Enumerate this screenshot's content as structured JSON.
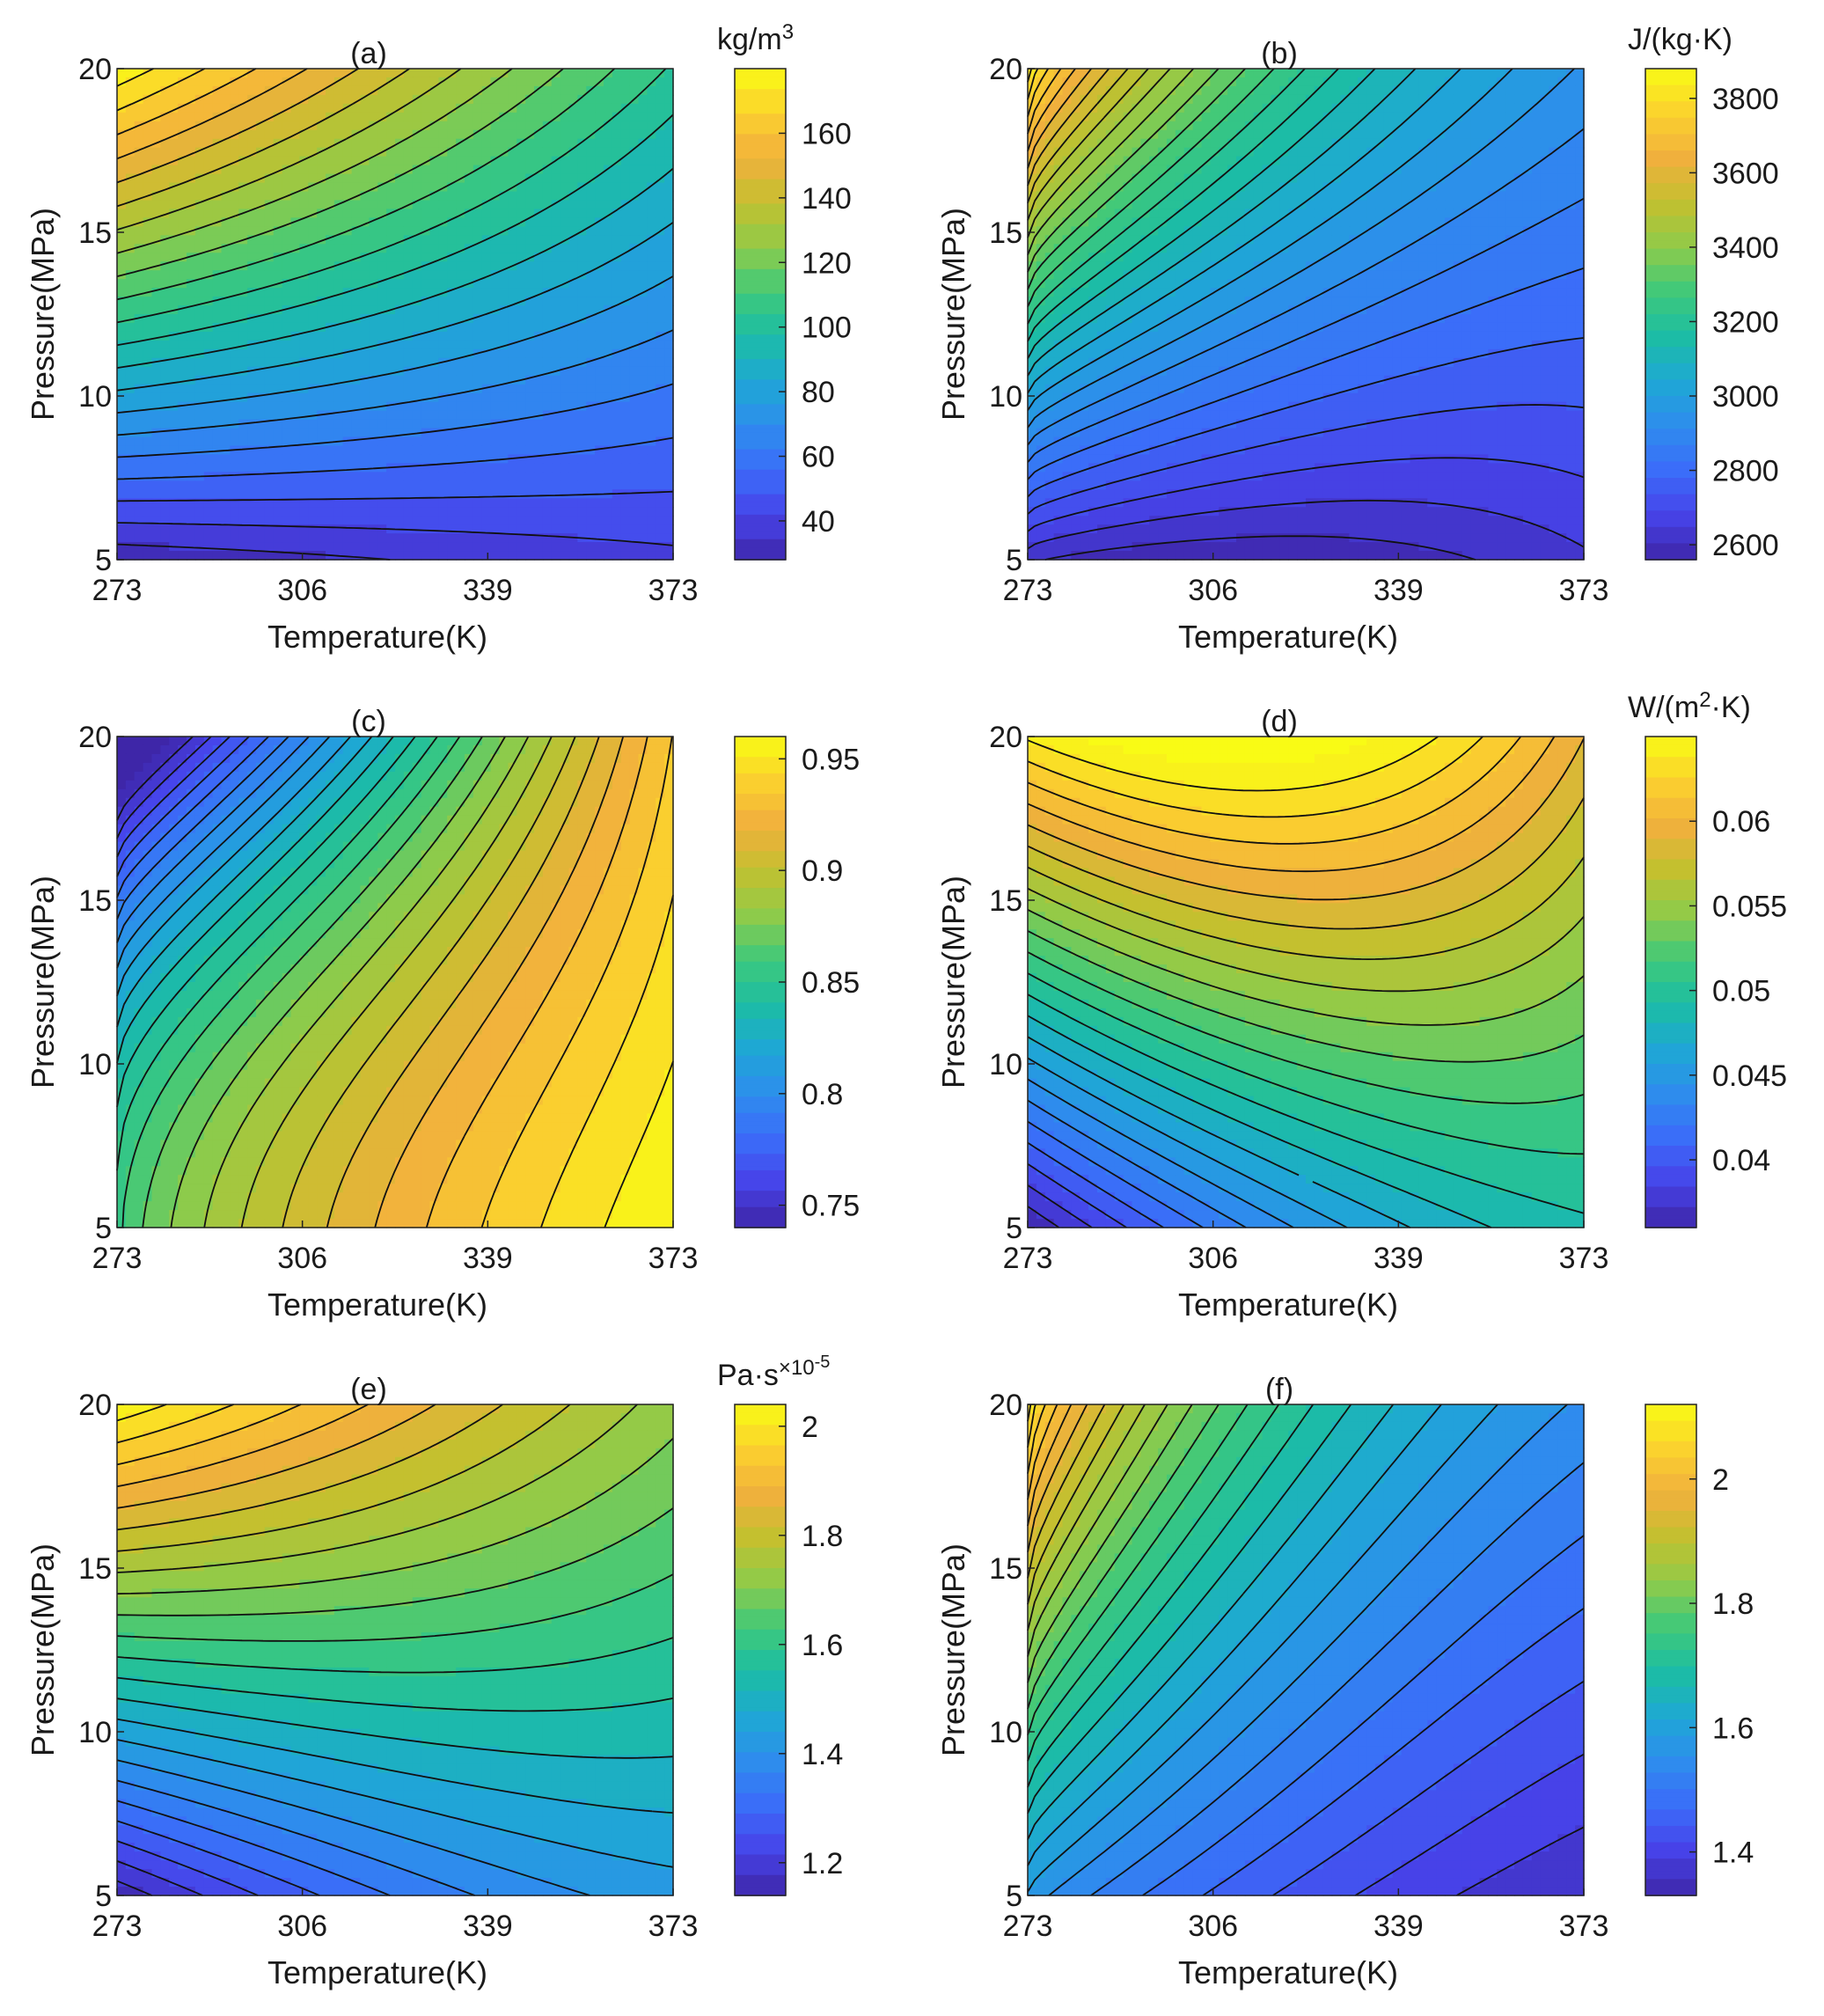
{
  "figure": {
    "colormap": [
      "#3e26a8",
      "#4743e9",
      "#3b6cf9",
      "#2e8ded",
      "#1ea8d4",
      "#1cbda4",
      "#3fc97a",
      "#8fcb4a",
      "#c3c02f",
      "#f1b03d",
      "#fbd12e",
      "#f9fb15"
    ],
    "contour_color": "#111111"
  },
  "chart_data": [
    {
      "id": "a",
      "type": "heatmap",
      "title": "(a)",
      "xlabel": "Temperature(K)",
      "ylabel": "Pressure(MPa)",
      "xlim": [
        273,
        373
      ],
      "ylim": [
        5,
        20
      ],
      "xticks": [
        "273",
        "306",
        "339",
        "373"
      ],
      "yticks": [
        "5",
        "10",
        "15",
        "20"
      ],
      "colorbar": {
        "label": "kg/m",
        "label_sup": "3",
        "label_tail": "",
        "range": [
          28,
          180
        ],
        "ticks": [
          "40",
          "60",
          "80",
          "100",
          "120",
          "140",
          "160"
        ],
        "tick_values": [
          40,
          60,
          80,
          100,
          120,
          140,
          160
        ]
      },
      "corners": {
        "t273_p5": 30,
        "t373_p5": 40,
        "t273_p20": 178,
        "t373_p20": 103
      },
      "n_levels": 22
    },
    {
      "id": "b",
      "type": "heatmap",
      "title": "(b)",
      "xlabel": "Temperature(K)",
      "ylabel": "Pressure(MPa)",
      "xlim": [
        273,
        373
      ],
      "ylim": [
        5,
        20
      ],
      "xticks": [
        "273",
        "306",
        "339",
        "373"
      ],
      "yticks": [
        "5",
        "10",
        "15",
        "20"
      ],
      "colorbar": {
        "label": "J/(kg·K)",
        "label_sup": "",
        "label_tail": "",
        "range": [
          2560,
          3880
        ],
        "ticks": [
          "2600",
          "2800",
          "3000",
          "3200",
          "3400",
          "3600",
          "3800"
        ],
        "tick_values": [
          2600,
          2800,
          3000,
          3200,
          3400,
          3600,
          3800
        ]
      },
      "corners": {
        "t273_p5": 2620,
        "t373_p5": 2640,
        "t273_p20": 3870,
        "t373_p20": 2950
      },
      "n_levels": 30
    },
    {
      "id": "c",
      "type": "heatmap",
      "title": "(c)",
      "xlabel": "Temperature(K)",
      "ylabel": "Pressure(MPa)",
      "xlim": [
        273,
        373
      ],
      "ylim": [
        5,
        20
      ],
      "xticks": [
        "273",
        "306",
        "339",
        "373"
      ],
      "yticks": [
        "5",
        "10",
        "15",
        "20"
      ],
      "colorbar": {
        "label": "",
        "label_sup": "",
        "label_tail": "",
        "range": [
          0.74,
          0.96
        ],
        "ticks": [
          "0.75",
          "0.8",
          "0.85",
          "0.9",
          "0.95"
        ],
        "tick_values": [
          0.75,
          0.8,
          0.85,
          0.9,
          0.95
        ]
      },
      "corners": {
        "t273_p5": 0.87,
        "t373_p5": 0.96,
        "t273_p20": 0.76,
        "t373_p20": 0.935
      },
      "n_levels": 26
    },
    {
      "id": "d",
      "type": "heatmap",
      "title": "(d)",
      "xlabel": "Temperature(K)",
      "ylabel": "Pressure(MPa)",
      "xlim": [
        273,
        373
      ],
      "ylim": [
        5,
        20
      ],
      "xticks": [
        "273",
        "306",
        "339",
        "373"
      ],
      "yticks": [
        "5",
        "10",
        "15",
        "20"
      ],
      "colorbar": {
        "label": "W/(m",
        "label_sup": "2",
        "label_tail": "·K)",
        "range": [
          0.036,
          0.065
        ],
        "ticks": [
          "0.04",
          "0.045",
          "0.05",
          "0.055",
          "0.06"
        ],
        "tick_values": [
          0.04,
          0.045,
          0.05,
          0.055,
          0.06
        ]
      },
      "corners": {
        "t273_p5": 0.036,
        "t373_p5": 0.049,
        "t273_p20": 0.064,
        "t373_p20": 0.059
      },
      "n_levels": 24
    },
    {
      "id": "e",
      "type": "heatmap",
      "title": "(e)",
      "xlabel": "Temperature(K)",
      "ylabel": "Pressure(MPa)",
      "xlim": [
        273,
        373
      ],
      "ylim": [
        5,
        20
      ],
      "xticks": [
        "273",
        "306",
        "339",
        "373"
      ],
      "yticks": [
        "5",
        "10",
        "15",
        "20"
      ],
      "colorbar": {
        "label": "Pa·s",
        "label_sup": "×10",
        "label_exp": "-5",
        "label_tail": "",
        "range": [
          1.14,
          2.04
        ],
        "ticks": [
          "1.2",
          "1.4",
          "1.6",
          "1.8",
          "2"
        ],
        "tick_values": [
          1.2,
          1.4,
          1.6,
          1.8,
          2.0
        ]
      },
      "corners": {
        "t273_p5": 1.15,
        "t373_p5": 1.42,
        "t273_p20": 2.03,
        "t373_p20": 1.72
      },
      "n_levels": 24
    },
    {
      "id": "f",
      "type": "heatmap",
      "title": "(f)",
      "xlabel": "Temperature(K)",
      "ylabel": "Pressure(MPa)",
      "xlim": [
        273,
        373
      ],
      "ylim": [
        5,
        20
      ],
      "xticks": [
        "273",
        "306",
        "339",
        "373"
      ],
      "yticks": [
        "5",
        "10",
        "15",
        "20"
      ],
      "colorbar": {
        "label": "",
        "label_sup": "",
        "label_tail": "",
        "range": [
          1.33,
          2.12
        ],
        "ticks": [
          "1.4",
          "1.6",
          "1.8",
          "2"
        ],
        "tick_values": [
          1.4,
          1.6,
          1.8,
          2.0
        ]
      },
      "corners": {
        "t273_p5": 1.58,
        "t373_p5": 1.36,
        "t273_p20": 2.11,
        "t373_p20": 1.55
      },
      "n_levels": 28
    }
  ]
}
